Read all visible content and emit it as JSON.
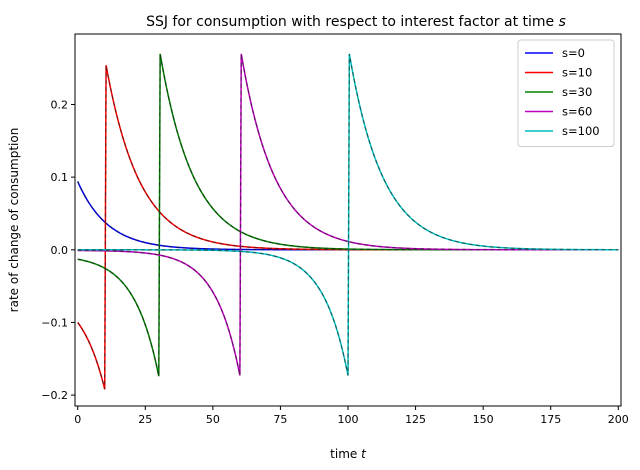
{
  "chart_data": {
    "type": "line",
    "title_prefix": "SSJ for consumption with respect to interest factor at time ",
    "title_var": "s",
    "xlabel_prefix": "time ",
    "xlabel_var": "t",
    "ylabel": "rate of change of consumption",
    "xlim": [
      -1,
      201
    ],
    "ylim": [
      -0.215,
      0.297
    ],
    "xticks": [
      0,
      25,
      50,
      75,
      100,
      125,
      150,
      175,
      200
    ],
    "xtick_labels": [
      "0",
      "25",
      "50",
      "75",
      "100",
      "125",
      "150",
      "175",
      "200"
    ],
    "yticks": [
      -0.2,
      -0.1,
      0.0,
      0.1,
      0.2
    ],
    "ytick_labels": [
      "−0.2",
      "−0.1",
      "0.0",
      "0.1",
      "0.2"
    ],
    "legend_position": "top-right",
    "series": [
      {
        "name": "s=0",
        "s": 0,
        "color": "#0000ff",
        "pre_start": 0.0,
        "pre_end": 0.0,
        "peak": 0.094,
        "decay": 0.09
      },
      {
        "name": "s=10",
        "s": 10,
        "color": "#ff0000",
        "pre_start": -0.1,
        "pre_end": -0.192,
        "peak": 0.258,
        "decay": 0.08
      },
      {
        "name": "s=30",
        "s": 30,
        "color": "#008000",
        "pre_start": -0.013,
        "pre_end": -0.174,
        "peak": 0.274,
        "decay": 0.08
      },
      {
        "name": "s=60",
        "s": 60,
        "color": "#bf00bf",
        "pre_start": -0.001,
        "pre_end": -0.173,
        "peak": 0.274,
        "decay": 0.08
      },
      {
        "name": "s=100",
        "s": 100,
        "color": "#00bfbf",
        "pre_start": 0.0,
        "pre_end": -0.173,
        "peak": 0.274,
        "decay": 0.08
      }
    ],
    "dashed_overlay_color": "#1a1a1a"
  }
}
